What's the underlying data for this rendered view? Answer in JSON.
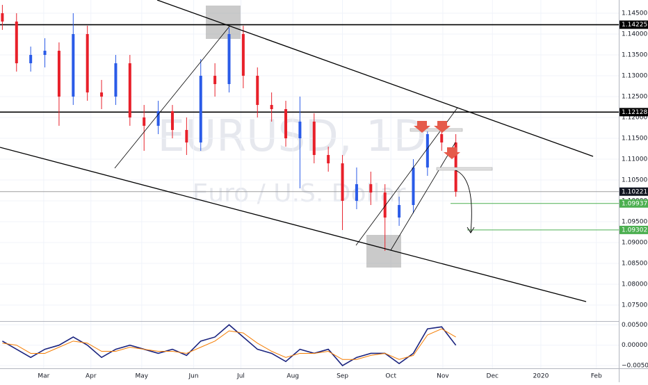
{
  "chart_data": [
    {
      "type": "candlestick",
      "watermark": "EURUSD, 1D",
      "subtitle": "Euro / U.S. Dollar",
      "up_color": "#2a5be8",
      "down_color": "#e8202a",
      "x": [
        1,
        7,
        13,
        19,
        25,
        31,
        37,
        43,
        49,
        55,
        61,
        67,
        73,
        79,
        85,
        91,
        97,
        103,
        109,
        115,
        121,
        127,
        133,
        139,
        145,
        151,
        157,
        163,
        169,
        175,
        181,
        187,
        193
      ],
      "open": [
        1.145,
        1.143,
        1.133,
        1.135,
        1.136,
        1.125,
        1.14,
        1.126,
        1.125,
        1.133,
        1.12,
        1.118,
        1.1215,
        1.117,
        1.114,
        1.13,
        1.128,
        1.14,
        1.13,
        1.123,
        1.122,
        1.115,
        1.119,
        1.111,
        1.109,
        1.1,
        1.104,
        1.102,
        1.096,
        1.099,
        1.108,
        1.116,
        1.114
      ],
      "high": [
        1.147,
        1.145,
        1.137,
        1.139,
        1.138,
        1.145,
        1.142,
        1.129,
        1.135,
        1.135,
        1.123,
        1.124,
        1.123,
        1.12,
        1.134,
        1.133,
        1.1415,
        1.142,
        1.132,
        1.126,
        1.124,
        1.125,
        1.121,
        1.113,
        1.111,
        1.108,
        1.107,
        1.104,
        1.101,
        1.11,
        1.118,
        1.1175,
        1.116
      ],
      "low": [
        1.141,
        1.131,
        1.131,
        1.132,
        1.118,
        1.123,
        1.124,
        1.122,
        1.123,
        1.118,
        1.112,
        1.116,
        1.115,
        1.111,
        1.112,
        1.125,
        1.126,
        1.127,
        1.12,
        1.119,
        1.113,
        1.103,
        1.109,
        1.107,
        1.093,
        1.098,
        1.099,
        1.088,
        1.094,
        1.097,
        1.106,
        1.112,
        1.101
      ],
      "close": [
        1.143,
        1.133,
        1.135,
        1.136,
        1.125,
        1.14,
        1.126,
        1.125,
        1.133,
        1.12,
        1.118,
        1.1215,
        1.117,
        1.114,
        1.13,
        1.128,
        1.14,
        1.13,
        1.123,
        1.122,
        1.115,
        1.119,
        1.111,
        1.109,
        1.1,
        1.104,
        1.102,
        1.096,
        1.099,
        1.108,
        1.116,
        1.114,
        1.1022
      ],
      "xlim": [
        0,
        262
      ],
      "ylim": [
        1.07117,
        1.14817
      ],
      "yticks": [
        {
          "value": 1.145,
          "label": "1.14500"
        },
        {
          "value": 1.14,
          "label": "1.14000"
        },
        {
          "value": 1.135,
          "label": "1.13500"
        },
        {
          "value": 1.13,
          "label": "1.13000"
        },
        {
          "value": 1.125,
          "label": "1.12500"
        },
        {
          "value": 1.12,
          "label": "1.12000"
        },
        {
          "value": 1.115,
          "label": "1.11500"
        },
        {
          "value": 1.11,
          "label": "1.11000"
        },
        {
          "value": 1.105,
          "label": "1.10500"
        },
        {
          "value": 1.1,
          "label": "1.10000"
        },
        {
          "value": 1.095,
          "label": "1.09500"
        },
        {
          "value": 1.09,
          "label": "1.09000"
        },
        {
          "value": 1.085,
          "label": "1.08500"
        },
        {
          "value": 1.08,
          "label": "1.08000"
        },
        {
          "value": 1.075,
          "label": "1.07500"
        }
      ],
      "levels": [
        {
          "value": 1.14225,
          "label": "1.14225",
          "color": "#000000"
        },
        {
          "value": 1.12128,
          "label": "1.12128",
          "color": "#000000"
        },
        {
          "value": 1.10221,
          "label": "1.10221",
          "color": "#9e9e9e"
        },
        {
          "value": 1.09937,
          "label": "1.09937",
          "color": "#4caf50"
        },
        {
          "value": 1.09302,
          "label": "1.09302",
          "color": "#4caf50"
        }
      ]
    },
    {
      "type": "line",
      "x": [
        1,
        7,
        13,
        19,
        25,
        31,
        37,
        43,
        49,
        55,
        61,
        67,
        73,
        79,
        85,
        91,
        97,
        103,
        109,
        115,
        121,
        127,
        133,
        139,
        145,
        151,
        157,
        163,
        169,
        175,
        181,
        187,
        193
      ],
      "series": [
        {
          "color": "#1a237e",
          "values": [
            0.001,
            -0.001,
            -0.003,
            -0.001,
            0.0,
            0.002,
            0.0,
            -0.003,
            -0.001,
            0.0,
            -0.001,
            -0.002,
            -0.001,
            -0.0025,
            0.001,
            0.002,
            0.005,
            0.002,
            -0.001,
            -0.002,
            -0.004,
            -0.001,
            -0.002,
            -0.001,
            -0.005,
            -0.003,
            -0.002,
            -0.002,
            -0.0045,
            -0.002,
            0.004,
            0.0045,
            0.0
          ]
        },
        {
          "color": "#f57c00",
          "values": [
            0.0005,
            0.0,
            -0.002,
            -0.002,
            -0.0005,
            0.001,
            0.0005,
            -0.0015,
            -0.0015,
            -0.0005,
            -0.001,
            -0.0015,
            -0.0015,
            -0.002,
            -0.0005,
            0.001,
            0.0035,
            0.003,
            0.0005,
            -0.0015,
            -0.003,
            -0.002,
            -0.002,
            -0.0015,
            -0.0035,
            -0.0035,
            -0.0025,
            -0.002,
            -0.0035,
            -0.0025,
            0.0025,
            0.004,
            0.002
          ]
        }
      ],
      "xlim": [
        0,
        262
      ],
      "xticks": [
        {
          "value": 18.5,
          "label": "Mar"
        },
        {
          "value": 38.5,
          "label": "Apr"
        },
        {
          "value": 60,
          "label": "May"
        },
        {
          "value": 82,
          "label": "Jun"
        },
        {
          "value": 102,
          "label": "Jul"
        },
        {
          "value": 124,
          "label": "Aug"
        },
        {
          "value": 145,
          "label": "Sep"
        },
        {
          "value": 165.5,
          "label": "Oct"
        },
        {
          "value": 187.5,
          "label": "Nov"
        },
        {
          "value": 208.5,
          "label": "Dec"
        },
        {
          "value": 229,
          "label": "2020"
        },
        {
          "value": 252.5,
          "label": "Feb"
        }
      ],
      "ylim": [
        -0.00567,
        0.00574
      ],
      "yticks": [
        {
          "value": 0.005,
          "label": "0.00500"
        },
        {
          "value": 0,
          "label": "0.00000"
        },
        {
          "value": -0.005,
          "label": "−0.00500"
        }
      ]
    }
  ]
}
